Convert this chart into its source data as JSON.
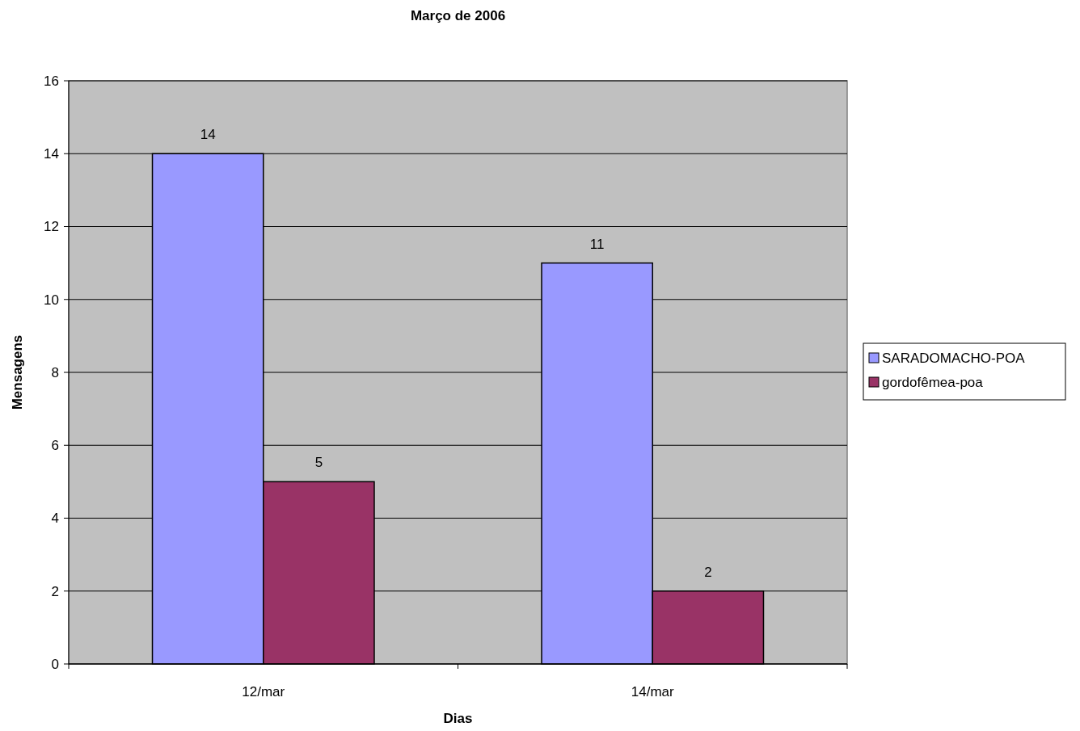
{
  "chart_data": {
    "type": "bar",
    "title": "Março de 2006",
    "xlabel": "Dias",
    "ylabel": "Mensagens",
    "categories": [
      "12/mar",
      "14/mar"
    ],
    "series": [
      {
        "name": "SARADOMACHO-POA",
        "color": "#9999ff",
        "values": [
          14,
          11
        ]
      },
      {
        "name": "gordofêmea-poa",
        "color": "#993366",
        "values": [
          5,
          2
        ]
      }
    ],
    "ylim": [
      0,
      16
    ],
    "yticks": [
      0,
      2,
      4,
      6,
      8,
      10,
      12,
      14,
      16
    ],
    "grid": "y",
    "legend": "right",
    "data_labels": true
  }
}
